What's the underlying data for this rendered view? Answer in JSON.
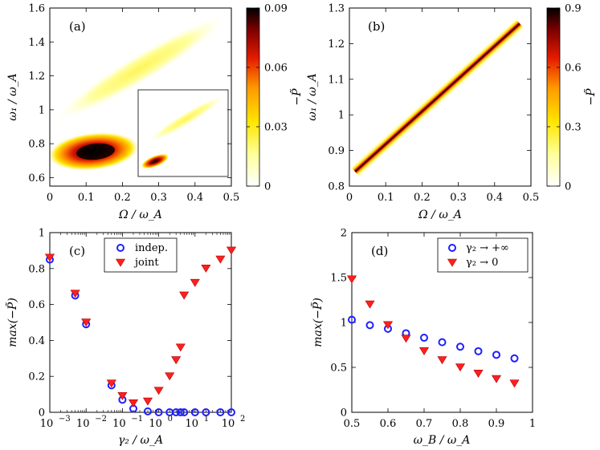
{
  "colors": {
    "marker_blue": "#1f1fff",
    "marker_red": "#ff1f1f",
    "colormap": [
      "#ffffff",
      "#ffff9a",
      "#ffe600",
      "#ff9a00",
      "#e41a00",
      "#7a0000",
      "#000000"
    ]
  },
  "chart_data": [
    {
      "type": "heatmap",
      "panel_label": "(a)",
      "xlabel": "Ω / ω_A",
      "ylabel": "ω₁ / ω_A",
      "xlim": [
        0,
        0.5
      ],
      "ylim": [
        0.55,
        1.6
      ],
      "xticks": [
        "0",
        "0.1",
        "0.2",
        "0.3",
        "0.4",
        "0.5"
      ],
      "yticks": [
        "0.6",
        "0.8",
        "1",
        "1.2",
        "1.4",
        "1.6"
      ],
      "colorbar": {
        "label": "−P̃",
        "range": [
          0,
          0.09
        ],
        "ticks": [
          "0",
          "0.03",
          "0.06",
          "0.09"
        ]
      },
      "features": [
        {
          "kind": "band",
          "x_range": [
            0.01,
            0.43
          ],
          "y_range": [
            1.03,
            1.55
          ],
          "peak": 0.025
        },
        {
          "kind": "blob",
          "x_center": 0.12,
          "y_center": 0.7,
          "peak": 0.09
        }
      ],
      "inset": true
    },
    {
      "type": "heatmap",
      "panel_label": "(b)",
      "xlabel": "Ω / ω_A",
      "ylabel": "ω₁ / ω_A",
      "xlim": [
        0,
        0.5
      ],
      "ylim": [
        0.8,
        1.3
      ],
      "xticks": [
        "0",
        "0.1",
        "0.2",
        "0.3",
        "0.4",
        "0.5"
      ],
      "yticks": [
        "0.8",
        "0.9",
        "1",
        "1.1",
        "1.2",
        "1.3"
      ],
      "colorbar": {
        "label": "−P̃",
        "range": [
          0,
          0.9
        ],
        "ticks": [
          "0",
          "0.3",
          "0.6",
          "0.9"
        ]
      },
      "features": [
        {
          "kind": "ridge",
          "x_range": [
            0.01,
            0.4
          ],
          "y_range": [
            0.83,
            1.23
          ],
          "peak": 0.9
        }
      ]
    },
    {
      "type": "scatter",
      "panel_label": "(c)",
      "xlabel": "γ₂ / ω_A",
      "ylabel": "max(−P̃)",
      "xscale": "log",
      "xlim": [
        0.001,
        100
      ],
      "ylim": [
        0,
        1
      ],
      "xticks": [
        "10",
        "10",
        "10",
        "10",
        "10",
        "10"
      ],
      "xtick_exponents": [
        "−3",
        "−2",
        "−1",
        "0",
        "1",
        "2"
      ],
      "yticks": [
        "0",
        "0.2",
        "0.4",
        "0.6",
        "0.8",
        "1"
      ],
      "legend_position": "top-center",
      "series": [
        {
          "name": "indep.",
          "marker": "circle",
          "color": "#1f1fff",
          "x": [
            0.001,
            0.005,
            0.01,
            0.05,
            0.1,
            0.2,
            0.5,
            1,
            2,
            3,
            4,
            5,
            10,
            20,
            50,
            100
          ],
          "y": [
            0.85,
            0.65,
            0.49,
            0.15,
            0.07,
            0.02,
            0.005,
            0,
            0,
            0,
            0,
            0,
            0,
            0,
            0,
            0
          ]
        },
        {
          "name": "joint",
          "marker": "triangle-down",
          "color": "#ff1f1f",
          "x": [
            0.001,
            0.005,
            0.01,
            0.05,
            0.1,
            0.2,
            0.5,
            1,
            2,
            3,
            4,
            5,
            10,
            20,
            50,
            100
          ],
          "y": [
            0.86,
            0.66,
            0.5,
            0.16,
            0.09,
            0.05,
            0.06,
            0.12,
            0.2,
            0.29,
            0.36,
            0.65,
            0.72,
            0.8,
            0.85,
            0.9
          ]
        }
      ]
    },
    {
      "type": "scatter",
      "panel_label": "(d)",
      "xlabel": "ω_B / ω_A",
      "ylabel": "max(−P̃)",
      "xlim": [
        0.5,
        1
      ],
      "ylim": [
        0,
        2
      ],
      "xticks": [
        "0.5",
        "0.6",
        "0.7",
        "0.8",
        "0.9",
        "1"
      ],
      "yticks": [
        "0",
        "0.5",
        "1",
        "1.5",
        "2"
      ],
      "legend_position": "top-right",
      "series": [
        {
          "name": "γ₂ → +∞",
          "marker": "circle",
          "color": "#1f1fff",
          "x": [
            0.5,
            0.55,
            0.6,
            0.65,
            0.7,
            0.75,
            0.8,
            0.85,
            0.9,
            0.95
          ],
          "y": [
            1.03,
            0.97,
            0.93,
            0.88,
            0.83,
            0.78,
            0.73,
            0.68,
            0.64,
            0.6
          ]
        },
        {
          "name": "γ₂ → 0",
          "marker": "triangle-down",
          "color": "#ff1f1f",
          "x": [
            0.5,
            0.55,
            0.6,
            0.65,
            0.7,
            0.75,
            0.8,
            0.85,
            0.9,
            0.95
          ],
          "y": [
            1.48,
            1.2,
            0.97,
            0.82,
            0.68,
            0.58,
            0.5,
            0.43,
            0.37,
            0.32
          ]
        }
      ]
    }
  ]
}
